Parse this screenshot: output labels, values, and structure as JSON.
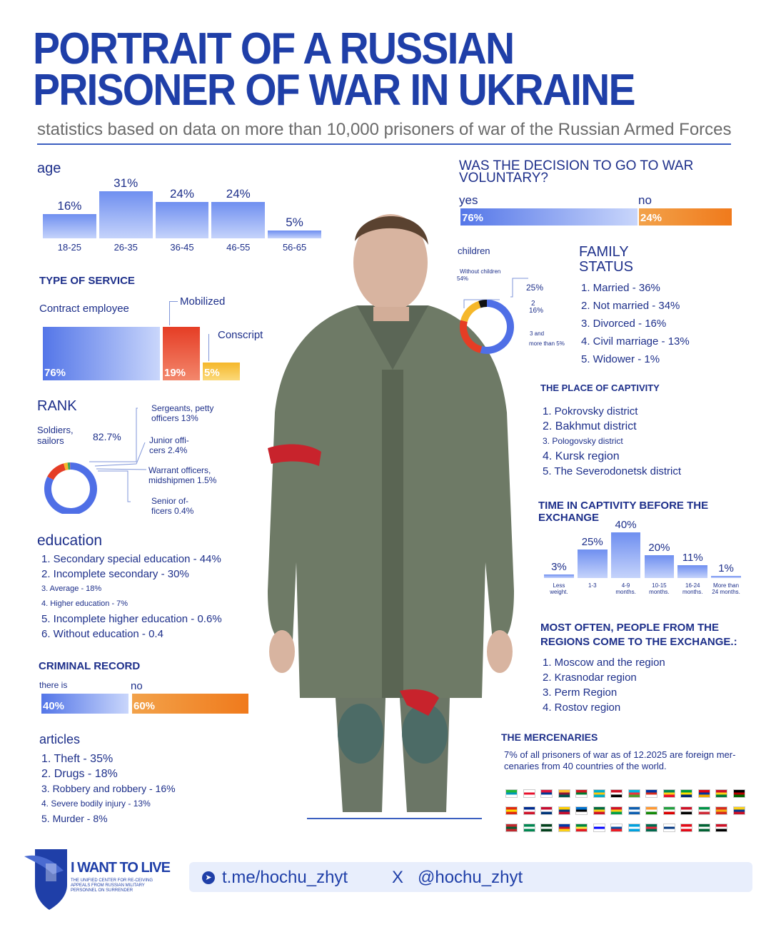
{
  "header": {
    "title_line1": "PORTRAIT OF A RUSSIAN",
    "title_line2": "PRISONER OF WAR IN UKRAINE",
    "subtitle": "statistics based on data on more than 10,000 prisoners of war of the Russian Armed Forces"
  },
  "age": {
    "title": "age",
    "chart_data": {
      "type": "bar",
      "categories": [
        "18-25",
        "26-35",
        "36-45",
        "46-55",
        "56-65"
      ],
      "values": [
        16,
        31,
        24,
        24,
        5
      ],
      "labels": [
        "16%",
        "31%",
        "24%",
        "24%",
        "5%"
      ],
      "title": "age",
      "ylim": [
        0,
        31
      ]
    }
  },
  "service": {
    "title": "TYPE OF SERVICE",
    "contract_label": "Contract employee",
    "mobilized_label": "Mobilized",
    "conscript_label": "Conscript",
    "contract_pct": "76%",
    "mobilized_pct": "19%",
    "conscript_pct": "5%",
    "values": [
      76,
      19,
      5
    ]
  },
  "rank": {
    "title": "RANK",
    "soldiers_label": "Soldiers, sailors",
    "soldiers_pct": "82.7%",
    "sergeants": "Sergeants, petty officers 13%",
    "junior": "Junior offi-cers 2.4%",
    "warrant": "Warrant officers, midshipmen 1.5%",
    "senior": "Senior of-ficers 0.4%",
    "values": [
      82.7,
      13,
      2.4,
      1.5,
      0.4
    ],
    "colors": [
      "#4f6fe6",
      "#e53d25",
      "#f5b72a",
      "#3aa55a",
      "#8a5cc8"
    ]
  },
  "education": {
    "title": "education",
    "items": [
      "1. Secondary special education - 44%",
      "2. Incomplete secondary - 30%",
      "3. Average - 18%",
      "4. Higher education - 7%",
      "5. Incomplete higher education - 0.6%",
      "6. Without education - 0.4"
    ]
  },
  "criminal": {
    "title": "CRIMINAL RECORD",
    "yes_label": "there is",
    "no_label": "no",
    "yes_pct": "40%",
    "no_pct": "60%",
    "values": [
      40,
      60
    ]
  },
  "articles": {
    "title": "articles",
    "items": [
      "1. Theft - 35%",
      "2. Drugs - 18%",
      "3. Robbery and robbery - 16%",
      "4. Severe bodily injury - 13%",
      "5. Murder - 8%"
    ]
  },
  "voluntary": {
    "title_line1": "WAS THE DECISION TO GO TO WAR",
    "title_line2": "VOLUNTARY?",
    "yes_label": "yes",
    "no_label": "no",
    "yes_pct": "76%",
    "no_pct": "24%",
    "values": [
      76,
      24
    ]
  },
  "children": {
    "title": "children",
    "without": "Without children",
    "without_pct": "54%",
    "one_pct": "25%",
    "two": "2",
    "two_pct": "16%",
    "three": "3 and",
    "more": "more than 5%",
    "values": [
      54,
      25,
      16,
      5
    ],
    "colors": [
      "#4f6fe6",
      "#e53d25",
      "#f5b72a",
      "#111111"
    ]
  },
  "family": {
    "title_line1": "FAMILY",
    "title_line2": "STATUS",
    "items": [
      "1. Married - 36%",
      "2. Not married - 34%",
      "3. Divorced - 16%",
      "4. Civil marriage - 13%",
      "5. Widower - 1%"
    ]
  },
  "captivity_place": {
    "title": "THE PLACE OF CAPTIVITY",
    "items": [
      "1. Pokrovsky district",
      "2. Bakhmut district",
      "3. Pologovsky district",
      "4. Kursk region",
      "5. The Severodonetsk district"
    ]
  },
  "captivity_time": {
    "title": "TIME IN CAPTIVITY BEFORE THE EXCHANGE",
    "chart_data": {
      "type": "bar",
      "categories": [
        "Less weight.",
        "1-3",
        "4-9 months.",
        "10-15 months.",
        "16-24 months.",
        "More than 24 months."
      ],
      "values": [
        3,
        25,
        40,
        20,
        11,
        1
      ],
      "labels": [
        "3%",
        "25%",
        "40%",
        "20%",
        "11%",
        "1%"
      ],
      "ylim": [
        0,
        40
      ]
    }
  },
  "exchange_regions": {
    "title_line1": "MOST OFTEN, PEOPLE FROM THE",
    "title_line2": "REGIONS COME TO THE EXCHANGE.:",
    "items": [
      "1. Moscow and the region",
      "2. Krasnodar region",
      "3. Perm Region",
      "4. Rostov region"
    ]
  },
  "mercenaries": {
    "title": "THE MERCENARIES",
    "text_line1": "7% of all prisoners of war as of 12.2025 are foreign mer-",
    "text_line2": "cenaries from 40 countries of the world.",
    "flag_colors": [
      [
        "#1eb53a",
        "#0099b5",
        "#ffffff"
      ],
      [
        "#ffffff",
        "#e8112d",
        "#ffffff"
      ],
      [
        "#dc143c",
        "#003893",
        "#ffffff"
      ],
      [
        "#ffbe29",
        "#8d153a",
        "#00534e"
      ],
      [
        "#ce1720",
        "#007c30",
        "#ffffff"
      ],
      [
        "#00afca",
        "#fec50c",
        "#00afca"
      ],
      [
        "#ce1126",
        "#ffffff",
        "#000000"
      ],
      [
        "#00b5e2",
        "#ef3340",
        "#509e2f"
      ],
      [
        "#0033a0",
        "#d52b1e",
        "#ffffff"
      ],
      [
        "#008751",
        "#fcd116",
        "#e8112d"
      ],
      [
        "#009c3b",
        "#ffdf00",
        "#002776"
      ],
      [
        "#d90012",
        "#0033a0",
        "#f2a800"
      ],
      [
        "#ce1126",
        "#fcd116",
        "#007a3d"
      ],
      [
        "#000000",
        "#bb0000",
        "#006600"
      ],
      [
        "#de2910",
        "#ffde00",
        "#de2910"
      ],
      [
        "#002a8f",
        "#ffffff",
        "#cf142b"
      ],
      [
        "#c60c30",
        "#ffffff",
        "#003478"
      ],
      [
        "#ffcd00",
        "#003580",
        "#c8102e"
      ],
      [
        "#0072ce",
        "#000000",
        "#ffffff"
      ],
      [
        "#006b3f",
        "#fcd116",
        "#ce1126"
      ],
      [
        "#ce1126",
        "#fcd116",
        "#009e49"
      ],
      [
        "#0d5eaf",
        "#ffffff",
        "#0d5eaf"
      ],
      [
        "#ff9933",
        "#ffffff",
        "#138808"
      ],
      [
        "#239f40",
        "#ffffff",
        "#da0000"
      ],
      [
        "#ce1126",
        "#ffffff",
        "#000000"
      ],
      [
        "#009246",
        "#ffffff",
        "#ce2b37"
      ],
      [
        "#d52b1e",
        "#f6b40e",
        "#d52b1e"
      ],
      [
        "#fcd116",
        "#003893",
        "#ce1126"
      ],
      [
        "#c1272d",
        "#006233",
        "#c1272d"
      ],
      [
        "#008751",
        "#ffffff",
        "#008751"
      ],
      [
        "#01411c",
        "#ffffff",
        "#01411c"
      ],
      [
        "#0038a8",
        "#ce1126",
        "#fcd116"
      ],
      [
        "#00853f",
        "#fdef42",
        "#e31b23"
      ],
      [
        "#ffffff",
        "#0000ff",
        "#ffffff"
      ],
      [
        "#ffffff",
        "#0b4ea2",
        "#ee1c25"
      ],
      [
        "#00a1de",
        "#ffffff",
        "#00a1de"
      ],
      [
        "#006a4e",
        "#f42a41",
        "#006a4e"
      ],
      [
        "#ffffff",
        "#003580",
        "#ffffff"
      ],
      [
        "#e30a17",
        "#ffffff",
        "#e30a17"
      ],
      [
        "#006233",
        "#ffffff",
        "#006233"
      ],
      [
        "#ce1126",
        "#ffffff",
        "#000000"
      ]
    ]
  },
  "footer": {
    "brand": "I WANT TO LIVE",
    "brand_sub": "THE UNIFIED CENTER FOR RE-CEIVING APPEALS FROM RUSSIAN MILITARY PERSONNEL ON SURRENDER",
    "telegram": "t.me/hochu_zhyt",
    "x_label": "X",
    "x_handle": "@hochu_zhyt"
  }
}
